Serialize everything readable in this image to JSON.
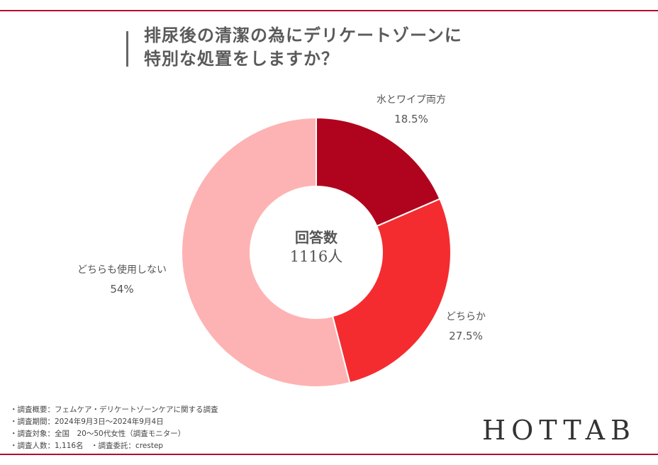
{
  "title": {
    "line1": "排尿後の清潔の為にデリケートゾーンに",
    "line2": "特別な処置をしますか？"
  },
  "chart_data": {
    "type": "pie",
    "donut": true,
    "center_label": {
      "line1": "回答数",
      "line2": "1116人"
    },
    "slices": [
      {
        "name": "水とワイプ両方",
        "value": 18.5,
        "display": "18.5%",
        "color": "#b0041e"
      },
      {
        "name": "どちらか",
        "value": 27.5,
        "display": "27.5%",
        "color": "#f42c30"
      },
      {
        "name": "どちらも使用しない",
        "value": 54,
        "display": "54%",
        "color": "#fdb3b3"
      }
    ]
  },
  "notes": [
    "・調査概要：フェムケア・デリケートゾーンケアに関する調査",
    "・調査期間：2024年9月3日〜2024年9月4日",
    "・調査対象：全国　20〜50代女性（調査モニター）",
    "・調査人数：1,116名　・調査委託：crestep"
  ],
  "logo": "HOTTAB"
}
